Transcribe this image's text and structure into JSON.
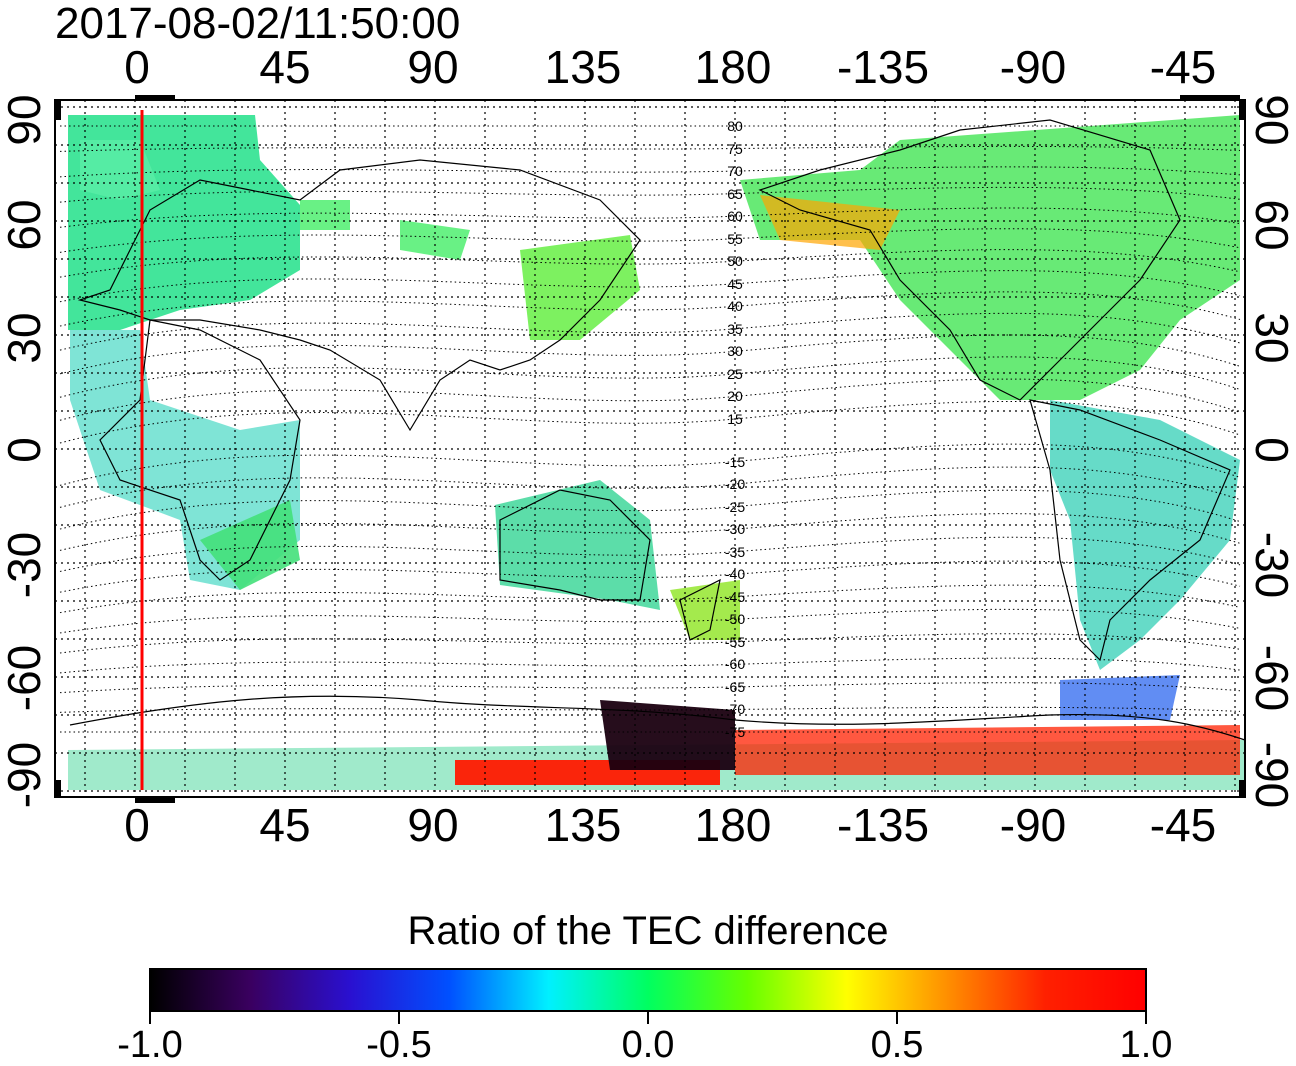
{
  "timestamp": "2017-08-02/11:50:00",
  "axes": {
    "top_ticks": [
      "0",
      "45",
      "90",
      "135",
      "180",
      "-135",
      "-90",
      "-45"
    ],
    "bottom_ticks": [
      "0",
      "45",
      "90",
      "135",
      "180",
      "-135",
      "-90",
      "-45"
    ],
    "left_ticks": [
      "90",
      "60",
      "30",
      "0",
      "-30",
      "-60",
      "-90"
    ],
    "right_ticks": [
      "90",
      "60",
      "30",
      "0",
      "-30",
      "-60",
      "-90"
    ]
  },
  "contour_labels": [
    "80",
    "75",
    "70",
    "65",
    "60",
    "55",
    "50",
    "45",
    "40",
    "35",
    "30",
    "25",
    "20",
    "15",
    "-15",
    "-20",
    "-25",
    "-30",
    "-35",
    "-40",
    "-45",
    "-50",
    "-55",
    "-60",
    "-65",
    "-70",
    "-75"
  ],
  "colorbar": {
    "title": "Ratio of the TEC difference",
    "labels": [
      "-1.0",
      "-0.5",
      "0.0",
      "0.5",
      "1.0"
    ],
    "range": [
      -1.0,
      1.0
    ],
    "stops": [
      "#000000",
      "#3a0060",
      "#2a10d0",
      "#0050ff",
      "#00f0ff",
      "#00ff60",
      "#66ff00",
      "#ffff00",
      "#ff9000",
      "#ff2000",
      "#ff0000"
    ]
  },
  "marker": {
    "longitude": 2,
    "color": "#ff0000"
  }
}
